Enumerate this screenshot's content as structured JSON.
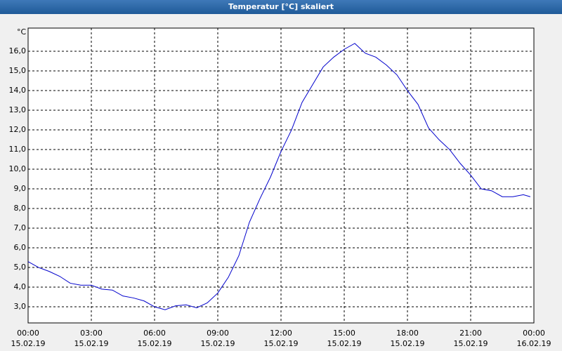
{
  "chart_data": {
    "type": "line",
    "title": "Temperatur [°C] skaliert",
    "y_unit": "°C",
    "x": [
      0,
      0.5,
      1,
      1.5,
      2,
      2.5,
      3,
      3.5,
      4,
      4.5,
      5,
      5.5,
      6,
      6.5,
      7,
      7.5,
      8,
      8.5,
      9,
      9.5,
      10,
      10.5,
      11,
      11.5,
      12,
      12.5,
      13,
      13.5,
      14,
      14.5,
      15,
      15.5,
      16,
      16.5,
      17,
      17.5,
      18,
      18.5,
      19,
      19.5,
      20,
      20.5,
      21,
      21.5,
      22,
      22.5,
      23,
      23.5,
      23.83
    ],
    "series": [
      {
        "color": "#0000cc",
        "values": [
          5.3,
          5.0,
          4.8,
          4.55,
          4.2,
          4.1,
          4.1,
          3.9,
          3.85,
          3.55,
          3.45,
          3.3,
          3.0,
          2.85,
          3.05,
          3.1,
          2.95,
          3.2,
          3.7,
          4.5,
          5.6,
          7.3,
          8.5,
          9.6,
          10.9,
          12.0,
          13.4,
          14.3,
          15.2,
          15.7,
          16.1,
          16.4,
          15.9,
          15.7,
          15.3,
          14.8,
          14.0,
          13.3,
          12.1,
          11.5,
          11.0,
          10.3,
          9.7,
          9.0,
          8.9,
          8.6,
          8.6,
          8.7,
          8.6
        ]
      }
    ],
    "xlim": [
      0,
      24
    ],
    "xticks": [
      {
        "value": 0,
        "label": "00:00"
      },
      {
        "value": 3,
        "label": "03:00"
      },
      {
        "value": 6,
        "label": "06:00"
      },
      {
        "value": 9,
        "label": "09:00"
      },
      {
        "value": 12,
        "label": "12:00"
      },
      {
        "value": 15,
        "label": "15:00"
      },
      {
        "value": 18,
        "label": "18:00"
      },
      {
        "value": 21,
        "label": "21:00"
      },
      {
        "value": 24,
        "label": "00:00"
      }
    ],
    "xtick_dates": [
      "15.02.19",
      "15.02.19",
      "15.02.19",
      "15.02.19",
      "15.02.19",
      "15.02.19",
      "15.02.19",
      "15.02.19",
      "16.02.19"
    ],
    "ylim": [
      2.18,
      17.18
    ],
    "yticks": [
      {
        "value": 3,
        "label": "3,0"
      },
      {
        "value": 4,
        "label": "4,0"
      },
      {
        "value": 5,
        "label": "5,0"
      },
      {
        "value": 6,
        "label": "6,0"
      },
      {
        "value": 7,
        "label": "7,0"
      },
      {
        "value": 8,
        "label": "8,0"
      },
      {
        "value": 9,
        "label": "9,0"
      },
      {
        "value": 10,
        "label": "10,0"
      },
      {
        "value": 11,
        "label": "11,0"
      },
      {
        "value": 12,
        "label": "12,0"
      },
      {
        "value": 13,
        "label": "13,0"
      },
      {
        "value": 14,
        "label": "14,0"
      },
      {
        "value": 15,
        "label": "15,0"
      },
      {
        "value": 16,
        "label": "16,0"
      }
    ],
    "grid": true
  }
}
